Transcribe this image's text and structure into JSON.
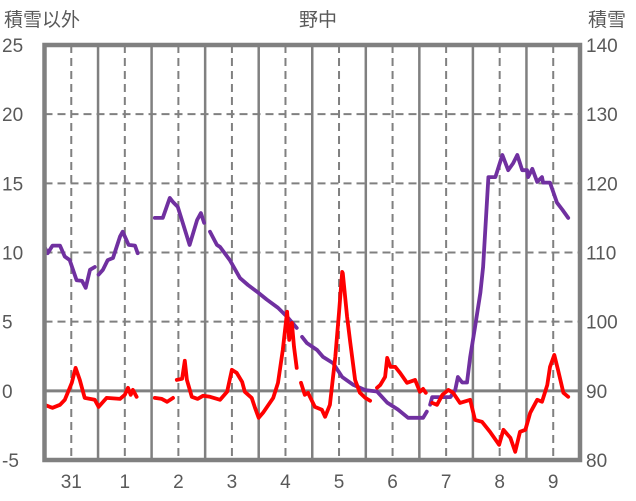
{
  "chart_data": {
    "type": "line",
    "title": "野中",
    "ylabel_left": "積雪以外",
    "ylabel_right": "積雪",
    "xlim": [
      -0.5,
      9.5
    ],
    "ylim_left": [
      -5,
      25
    ],
    "ylim_right": [
      80,
      140
    ],
    "yticks_left": [
      "25",
      "20",
      "15",
      "10",
      "5",
      "0",
      "-5"
    ],
    "yticks_right": [
      "140",
      "130",
      "120",
      "110",
      "100",
      "90",
      "80"
    ],
    "xtick_labels": [
      "31",
      "1",
      "2",
      "3",
      "4",
      "5",
      "6",
      "7",
      "8",
      "9"
    ],
    "grid": true,
    "series": [
      {
        "name": "積雪",
        "axis": "right",
        "color": "#7030a0",
        "segments": [
          [
            [
              -0.5,
              110.8
            ],
            [
              -0.44,
              109.9
            ],
            [
              -0.35,
              111.0
            ],
            [
              -0.21,
              111.0
            ],
            [
              -0.12,
              109.4
            ],
            [
              -0.03,
              108.9
            ],
            [
              0.1,
              106.0
            ],
            [
              0.2,
              105.9
            ],
            [
              0.27,
              104.9
            ],
            [
              0.35,
              107.5
            ],
            [
              0.44,
              107.9
            ]
          ],
          [
            [
              0.51,
              106.8
            ],
            [
              0.59,
              107.5
            ],
            [
              0.68,
              108.9
            ],
            [
              0.78,
              109.2
            ],
            [
              0.91,
              112.3
            ],
            [
              0.96,
              113.0
            ],
            [
              1.07,
              111.1
            ],
            [
              1.19,
              111.0
            ],
            [
              1.24,
              109.9
            ]
          ],
          [
            [
              1.56,
              115.0
            ],
            [
              1.71,
              115.0
            ],
            [
              1.84,
              117.9
            ],
            [
              1.9,
              117.3
            ],
            [
              1.99,
              116.6
            ],
            [
              2.21,
              111.1
            ],
            [
              2.35,
              114.7
            ],
            [
              2.42,
              115.7
            ],
            [
              2.48,
              114.3
            ]
          ],
          [
            [
              2.59,
              113.0
            ],
            [
              2.72,
              111.1
            ],
            [
              2.78,
              110.8
            ],
            [
              2.96,
              108.9
            ],
            [
              3.15,
              106.3
            ],
            [
              3.3,
              105.3
            ],
            [
              3.49,
              104.2
            ],
            [
              3.65,
              103.2
            ],
            [
              3.86,
              102.0
            ],
            [
              4.03,
              100.7
            ],
            [
              4.21,
              99.1
            ]
          ],
          [
            [
              4.31,
              97.8
            ],
            [
              4.4,
              96.9
            ],
            [
              4.59,
              95.9
            ],
            [
              4.7,
              94.9
            ],
            [
              4.89,
              94.0
            ],
            [
              5.06,
              92.0
            ],
            [
              5.26,
              90.9
            ],
            [
              5.49,
              90.1
            ],
            [
              5.71,
              89.9
            ],
            [
              5.9,
              88.3
            ],
            [
              6.1,
              87.3
            ],
            [
              6.29,
              86.1
            ],
            [
              6.57,
              86.1
            ],
            [
              6.64,
              87.0
            ]
          ],
          [
            [
              6.7,
              88.0
            ],
            [
              6.74,
              89.1
            ],
            [
              7.08,
              89.1
            ],
            [
              7.17,
              90.1
            ],
            [
              7.22,
              92.0
            ],
            [
              7.3,
              91.2
            ],
            [
              7.39,
              91.2
            ],
            [
              7.45,
              94.9
            ],
            [
              7.54,
              99.2
            ],
            [
              7.64,
              104.2
            ],
            [
              7.69,
              107.9
            ],
            [
              7.79,
              120.9
            ],
            [
              7.92,
              120.9
            ],
            [
              8.05,
              124.1
            ],
            [
              8.16,
              121.9
            ],
            [
              8.25,
              122.9
            ],
            [
              8.33,
              124.1
            ],
            [
              8.42,
              121.9
            ],
            [
              8.51,
              121.9
            ],
            [
              8.53,
              120.9
            ],
            [
              8.61,
              122.1
            ],
            [
              8.7,
              120.2
            ],
            [
              8.79,
              120.9
            ],
            [
              8.81,
              120.1
            ],
            [
              8.94,
              120.1
            ],
            [
              9.07,
              117.2
            ],
            [
              9.17,
              116.2
            ],
            [
              9.28,
              115.0
            ]
          ]
        ]
      },
      {
        "name": "積雪以外",
        "axis": "left",
        "color": "#ff0000",
        "segments": [
          [
            [
              -0.5,
              -1.01
            ],
            [
              -0.4,
              -1.16
            ],
            [
              -0.35,
              -1.23
            ],
            [
              -0.21,
              -1.01
            ],
            [
              -0.12,
              -0.65
            ],
            [
              0.01,
              0.58
            ],
            [
              0.08,
              1.66
            ],
            [
              0.16,
              0.79
            ],
            [
              0.25,
              -0.51
            ],
            [
              0.35,
              -0.58
            ],
            [
              0.44,
              -0.65
            ],
            [
              0.51,
              -1.16
            ],
            [
              0.66,
              -0.51
            ],
            [
              0.91,
              -0.58
            ],
            [
              1.0,
              -0.29
            ],
            [
              1.06,
              0.22
            ],
            [
              1.11,
              -0.29
            ],
            [
              1.15,
              0.07
            ],
            [
              1.22,
              -0.43
            ]
          ],
          [
            [
              1.56,
              -0.51
            ],
            [
              1.69,
              -0.58
            ],
            [
              1.79,
              -0.79
            ],
            [
              1.9,
              -0.51
            ]
          ],
          [
            [
              1.97,
              0.79
            ],
            [
              2.07,
              0.87
            ],
            [
              2.12,
              2.17
            ],
            [
              2.16,
              0.79
            ],
            [
              2.25,
              -0.43
            ],
            [
              2.36,
              -0.58
            ],
            [
              2.46,
              -0.36
            ],
            [
              2.59,
              -0.43
            ],
            [
              2.78,
              -0.65
            ],
            [
              2.91,
              -0.07
            ],
            [
              3.0,
              1.52
            ],
            [
              3.09,
              1.3
            ],
            [
              3.19,
              0.65
            ],
            [
              3.24,
              -0.07
            ],
            [
              3.37,
              -0.51
            ],
            [
              3.43,
              -1.23
            ],
            [
              3.5,
              -1.95
            ],
            [
              3.58,
              -1.59
            ],
            [
              3.77,
              -0.51
            ],
            [
              3.86,
              0.58
            ],
            [
              3.95,
              2.96
            ],
            [
              4.03,
              5.71
            ],
            [
              4.07,
              3.68
            ],
            [
              4.12,
              4.91
            ],
            [
              4.16,
              3.18
            ],
            [
              4.21,
              1.66
            ]
          ],
          [
            [
              4.29,
              0.58
            ],
            [
              4.36,
              -0.29
            ],
            [
              4.42,
              -0.14
            ],
            [
              4.55,
              -1.16
            ],
            [
              4.68,
              -1.37
            ],
            [
              4.74,
              -1.88
            ],
            [
              4.83,
              -1.01
            ],
            [
              4.93,
              2.46
            ],
            [
              5.0,
              5.64
            ],
            [
              5.06,
              8.6
            ],
            [
              5.07,
              8.5
            ],
            [
              5.15,
              5.35
            ],
            [
              5.21,
              3.47
            ],
            [
              5.3,
              0.79
            ],
            [
              5.39,
              -0.14
            ],
            [
              5.49,
              -0.51
            ],
            [
              5.58,
              -0.72
            ]
          ],
          [
            [
              5.71,
              0.22
            ],
            [
              5.77,
              0.43
            ],
            [
              5.86,
              1.01
            ],
            [
              5.9,
              2.38
            ],
            [
              5.96,
              1.73
            ],
            [
              6.05,
              1.73
            ],
            [
              6.14,
              1.3
            ],
            [
              6.27,
              0.58
            ],
            [
              6.42,
              0.79
            ],
            [
              6.51,
              -0.07
            ],
            [
              6.57,
              0.14
            ],
            [
              6.62,
              -0.14
            ]
          ],
          [
            [
              6.74,
              -0.87
            ],
            [
              6.83,
              -1.01
            ],
            [
              6.93,
              -0.29
            ],
            [
              7.04,
              0.07
            ],
            [
              7.13,
              -0.14
            ],
            [
              7.26,
              -0.87
            ],
            [
              7.45,
              -0.65
            ],
            [
              7.54,
              -2.1
            ],
            [
              7.67,
              -2.24
            ],
            [
              7.82,
              -2.96
            ],
            [
              7.99,
              -3.9
            ],
            [
              8.07,
              -2.82
            ],
            [
              8.2,
              -3.4
            ],
            [
              8.29,
              -4.41
            ],
            [
              8.38,
              -2.96
            ],
            [
              8.48,
              -2.82
            ],
            [
              8.57,
              -1.59
            ],
            [
              8.7,
              -0.65
            ],
            [
              8.79,
              -0.79
            ],
            [
              8.89,
              0.43
            ],
            [
              8.94,
              1.73
            ],
            [
              9.02,
              2.6
            ],
            [
              9.09,
              1.52
            ],
            [
              9.19,
              -0.14
            ],
            [
              9.28,
              -0.43
            ]
          ]
        ]
      }
    ]
  }
}
